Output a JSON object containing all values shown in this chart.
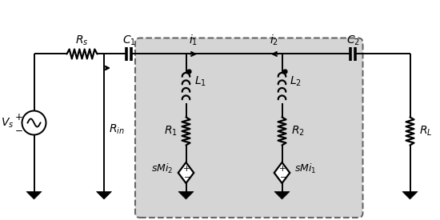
{
  "bg_color": "#ffffff",
  "box_color": "#d8d8d8",
  "line_color": "#000000",
  "line_width": 1.4,
  "component_lw": 1.6,
  "fig_width": 5.5,
  "fig_height": 2.75,
  "dpi": 100,
  "labels": {
    "Rs": "$R_s$",
    "Rin": "$R_{in}$",
    "Vs": "$V_s$",
    "C1": "$C_1$",
    "C2": "$C_2$",
    "L1": "$L_1$",
    "L2": "$L_2$",
    "R1": "$R_1$",
    "R2": "$R_2$",
    "RL": "$R_L$",
    "sMi2": "$sMi_2$",
    "sMi1": "$sMi_1$",
    "i1": "$i_1$",
    "i2": "$i_2$"
  }
}
